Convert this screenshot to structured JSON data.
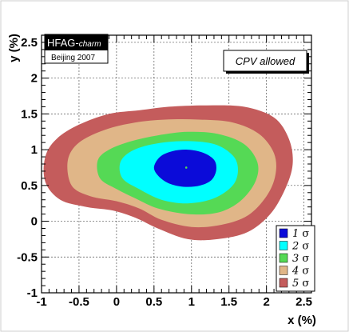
{
  "chart_data": {
    "type": "contour",
    "xlabel": "x (%)",
    "ylabel": "y (%)",
    "xlim": [
      -1.0,
      2.6
    ],
    "ylim": [
      -1.0,
      2.6
    ],
    "x_ticks": [
      "-1",
      "-0.5",
      "0",
      "0.5",
      "1",
      "1.5",
      "2",
      "2.5"
    ],
    "y_ticks": [
      "-1",
      "-0.5",
      "0",
      "0.5",
      "1",
      "1.5",
      "2",
      "2.5"
    ],
    "grid": true,
    "central_value": {
      "x": 0.93,
      "y": 0.75
    },
    "contours": [
      {
        "level": "5",
        "label": "5 σ",
        "color": "#c45c5c",
        "points": [
          [
            -0.95,
            0.9
          ],
          [
            -0.8,
            1.15
          ],
          [
            -0.5,
            1.35
          ],
          [
            -0.1,
            1.5
          ],
          [
            0.3,
            1.55
          ],
          [
            0.7,
            1.6
          ],
          [
            1.2,
            1.62
          ],
          [
            1.7,
            1.6
          ],
          [
            2.1,
            1.45
          ],
          [
            2.3,
            1.15
          ],
          [
            2.35,
            0.8
          ],
          [
            2.25,
            0.45
          ],
          [
            2.05,
            0.1
          ],
          [
            1.75,
            -0.15
          ],
          [
            1.35,
            -0.25
          ],
          [
            0.95,
            -0.25
          ],
          [
            0.55,
            -0.1
          ],
          [
            0.25,
            0.05
          ],
          [
            -0.05,
            0.15
          ],
          [
            -0.4,
            0.2
          ],
          [
            -0.75,
            0.3
          ],
          [
            -0.95,
            0.55
          ]
        ]
      },
      {
        "level": "4",
        "label": "4 σ",
        "color": "#e0b688",
        "points": [
          [
            -0.65,
            0.85
          ],
          [
            -0.5,
            1.1
          ],
          [
            -0.15,
            1.28
          ],
          [
            0.25,
            1.38
          ],
          [
            0.65,
            1.42
          ],
          [
            1.1,
            1.42
          ],
          [
            1.55,
            1.38
          ],
          [
            1.9,
            1.22
          ],
          [
            2.1,
            0.95
          ],
          [
            2.12,
            0.65
          ],
          [
            2.0,
            0.35
          ],
          [
            1.75,
            0.08
          ],
          [
            1.4,
            -0.05
          ],
          [
            1.0,
            -0.08
          ],
          [
            0.6,
            0.02
          ],
          [
            0.3,
            0.18
          ],
          [
            0.0,
            0.28
          ],
          [
            -0.35,
            0.35
          ],
          [
            -0.6,
            0.5
          ]
        ]
      },
      {
        "level": "3",
        "label": "3 σ",
        "color": "#55d955",
        "points": [
          [
            -0.25,
            0.85
          ],
          [
            -0.1,
            1.0
          ],
          [
            0.2,
            1.12
          ],
          [
            0.55,
            1.2
          ],
          [
            0.95,
            1.25
          ],
          [
            1.35,
            1.22
          ],
          [
            1.7,
            1.08
          ],
          [
            1.88,
            0.82
          ],
          [
            1.85,
            0.55
          ],
          [
            1.65,
            0.28
          ],
          [
            1.35,
            0.12
          ],
          [
            0.95,
            0.1
          ],
          [
            0.55,
            0.18
          ],
          [
            0.25,
            0.32
          ],
          [
            0.0,
            0.45
          ],
          [
            -0.22,
            0.6
          ]
        ]
      },
      {
        "level": "2",
        "label": "2 σ",
        "color": "#00ffff",
        "points": [
          [
            0.05,
            0.82
          ],
          [
            0.2,
            0.98
          ],
          [
            0.5,
            1.08
          ],
          [
            0.9,
            1.12
          ],
          [
            1.3,
            1.08
          ],
          [
            1.55,
            0.92
          ],
          [
            1.62,
            0.72
          ],
          [
            1.55,
            0.5
          ],
          [
            1.3,
            0.32
          ],
          [
            0.95,
            0.25
          ],
          [
            0.6,
            0.3
          ],
          [
            0.3,
            0.45
          ],
          [
            0.08,
            0.6
          ]
        ]
      },
      {
        "level": "1",
        "label": "1 σ",
        "color": "#0b0bd9",
        "points": [
          [
            0.5,
            0.75
          ],
          [
            0.58,
            0.9
          ],
          [
            0.75,
            0.98
          ],
          [
            0.95,
            1.0
          ],
          [
            1.15,
            0.96
          ],
          [
            1.3,
            0.86
          ],
          [
            1.33,
            0.72
          ],
          [
            1.27,
            0.58
          ],
          [
            1.12,
            0.5
          ],
          [
            0.92,
            0.48
          ],
          [
            0.72,
            0.52
          ],
          [
            0.57,
            0.62
          ]
        ]
      }
    ],
    "legend_position": "bottom-right",
    "annotations": {
      "logo": "HFAG-charm",
      "conference": "Beijing 2007",
      "note": "CPV allowed"
    }
  },
  "legend": [
    {
      "num": "1",
      "sym": "σ",
      "color": "#0b0bd9"
    },
    {
      "num": "2",
      "sym": "σ",
      "color": "#00ffff"
    },
    {
      "num": "3",
      "sym": "σ",
      "color": "#55d955"
    },
    {
      "num": "4",
      "sym": "σ",
      "color": "#e0b688"
    },
    {
      "num": "5",
      "sym": "σ",
      "color": "#c45c5c"
    }
  ]
}
